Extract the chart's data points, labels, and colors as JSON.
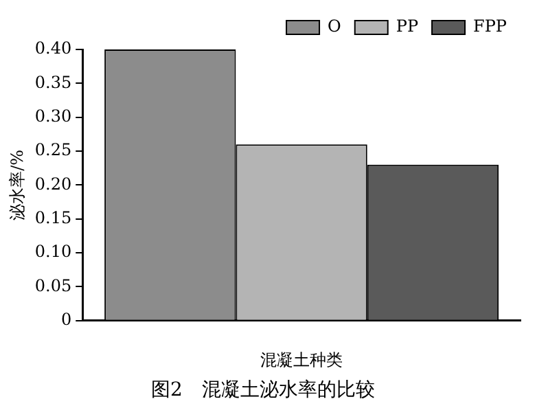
{
  "chart_data": {
    "type": "bar",
    "title": "图2　混凝土泌水率的比较",
    "xlabel": "混凝土种类",
    "ylabel": "泌水率/%",
    "categories": [
      null
    ],
    "series": [
      {
        "name": "O",
        "color": "#8c8c8c",
        "values": [
          0.4
        ]
      },
      {
        "name": "PP",
        "color": "#b4b4b4",
        "values": [
          0.26
        ]
      },
      {
        "name": "FPP",
        "color": "#5a5a5a",
        "values": [
          0.23
        ]
      }
    ],
    "ylim": [
      0,
      0.4
    ],
    "yticks": [
      0,
      0.05,
      {
        "value": 0.1,
        "label": "0.10"
      },
      0.15,
      {
        "value": 0.2,
        "label": "0.20"
      },
      0.25,
      {
        "value": 0.3,
        "label": "0.30"
      },
      0.35,
      {
        "value": 0.4,
        "label": "0.40"
      }
    ],
    "grid": false,
    "legend": "top right"
  }
}
